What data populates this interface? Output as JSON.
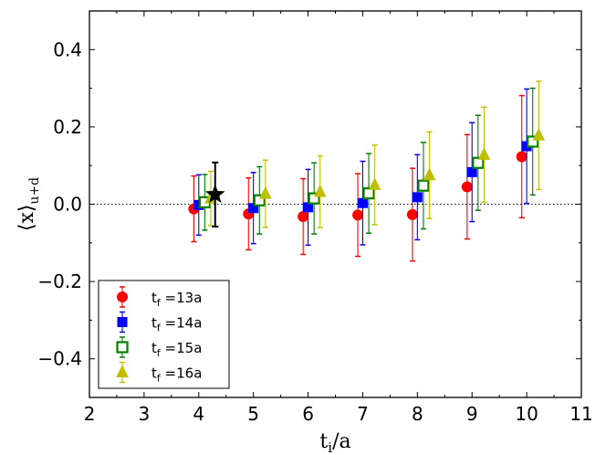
{
  "chart_data": {
    "type": "scatter",
    "title": "",
    "xlabel": "t_i/a",
    "ylabel": "⟨x⟩_u+d",
    "xlim": [
      2,
      11
    ],
    "ylim": [
      -0.5,
      0.5
    ],
    "xticks": [
      2,
      3,
      4,
      5,
      6,
      7,
      8,
      9,
      10,
      11
    ],
    "yticks": [
      -0.4,
      -0.2,
      0.0,
      0.2,
      0.4
    ],
    "ytick_labels": [
      "−0.4",
      "−0.2",
      "0.0",
      "0.2",
      "0.4"
    ],
    "reference_line": {
      "y": 0.0,
      "style": "dotted"
    },
    "legend_position": "lower-left",
    "series": [
      {
        "name": "t_f =13a",
        "legend_main": "t",
        "legend_sub": "f",
        "legend_rest": " =13a",
        "marker": "circle",
        "color": "#ff0000",
        "x": [
          4,
          5,
          6,
          7,
          8,
          9,
          10
        ],
        "y": [
          -0.012,
          -0.025,
          -0.032,
          -0.028,
          -0.027,
          0.045,
          0.123
        ],
        "err": [
          0.085,
          0.093,
          0.098,
          0.107,
          0.12,
          0.135,
          0.158
        ]
      },
      {
        "name": "t_f =14a",
        "legend_main": "t",
        "legend_sub": "f",
        "legend_rest": " =14a",
        "marker": "square",
        "color": "#0000ff",
        "x": [
          4,
          5,
          6,
          7,
          8,
          9,
          10
        ],
        "y": [
          -0.002,
          -0.01,
          -0.008,
          0.003,
          0.018,
          0.083,
          0.15
        ],
        "err": [
          0.078,
          0.092,
          0.098,
          0.108,
          0.11,
          0.128,
          0.148
        ]
      },
      {
        "name": "t_f =15a",
        "legend_main": "t",
        "legend_sub": "f",
        "legend_rest": " =15a",
        "marker": "open-square",
        "color": "#008000",
        "x": [
          4,
          5,
          6,
          7,
          8,
          9,
          10
        ],
        "y": [
          0.005,
          0.01,
          0.015,
          0.028,
          0.048,
          0.107,
          0.162
        ],
        "err": [
          0.072,
          0.087,
          0.092,
          0.103,
          0.112,
          0.123,
          0.138
        ]
      },
      {
        "name": "t_f =16a",
        "legend_main": "t",
        "legend_sub": "f",
        "legend_rest": " =16a",
        "marker": "triangle",
        "color": "#bfbf00",
        "x": [
          4,
          5,
          6,
          7,
          8,
          9,
          10
        ],
        "y": [
          0.015,
          0.027,
          0.032,
          0.05,
          0.075,
          0.128,
          0.178
        ],
        "err": [
          0.07,
          0.087,
          0.093,
          0.103,
          0.112,
          0.123,
          0.14
        ]
      }
    ],
    "highlight_point": {
      "marker": "star",
      "color": "#000000",
      "x": 4.3,
      "y": 0.025,
      "err": 0.083
    }
  }
}
